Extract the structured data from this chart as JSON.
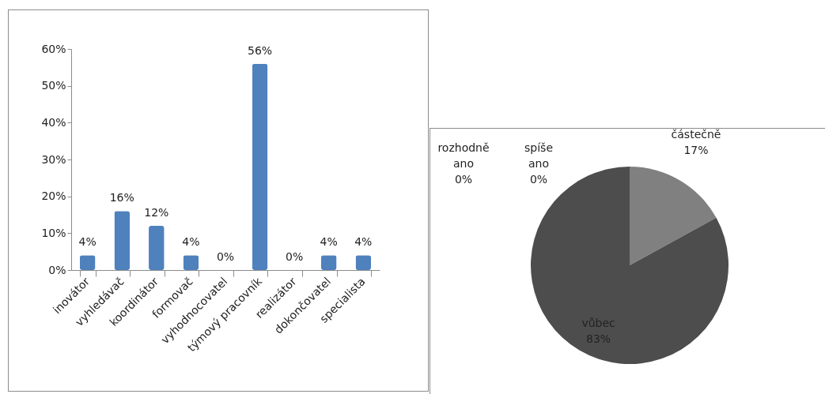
{
  "chart_data": [
    {
      "type": "bar",
      "categories": [
        "inovátor",
        "vyhledávač",
        "koordinátor",
        "formovač",
        "vyhodnocovatel",
        "týmový pracovník",
        "realizátor",
        "dokončovatel",
        "specialista"
      ],
      "values": [
        4,
        16,
        12,
        4,
        0,
        56,
        0,
        4,
        4
      ],
      "value_labels": [
        "4%",
        "16%",
        "12%",
        "4%",
        "0%",
        "56%",
        "0%",
        "4%",
        "4%"
      ],
      "color": "#4f81bd",
      "ylim": [
        0,
        60
      ],
      "yticks": [
        {
          "value": 0,
          "label": "0%"
        },
        {
          "value": 10,
          "label": "10%"
        },
        {
          "value": 20,
          "label": "20%"
        },
        {
          "value": 30,
          "label": "30%"
        },
        {
          "value": 40,
          "label": "40%"
        },
        {
          "value": 50,
          "label": "50%"
        },
        {
          "value": 60,
          "label": "60%"
        }
      ],
      "grid": false,
      "legend": false
    },
    {
      "type": "pie",
      "categories": [
        "rozhodně ano",
        "spíše ano",
        "částečně",
        "vůbec"
      ],
      "values": [
        0,
        0,
        17,
        83
      ],
      "value_labels": [
        "0%",
        "0%",
        "17%",
        "83%"
      ],
      "colors": [
        "#bfbfbf",
        "#a6a6a6",
        "#808080",
        "#4d4d4d"
      ],
      "legend": false
    }
  ]
}
